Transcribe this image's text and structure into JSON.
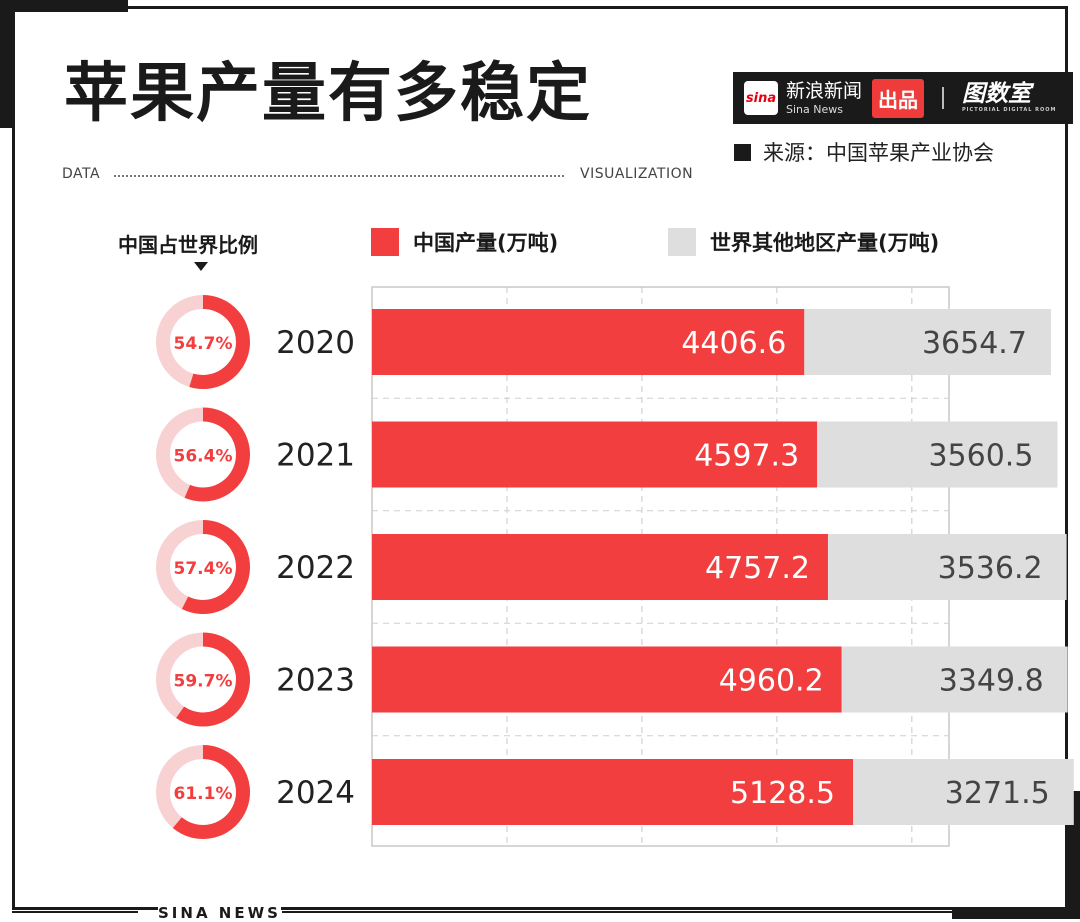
{
  "title": "苹果产量有多稳定",
  "brand": {
    "logo_text": "sina",
    "name_cn": "新浪新闻",
    "name_en": "Sina News",
    "pill": "出品",
    "partner": "图数室",
    "partner_sub": "PICTORIAL DIGITAL ROOM"
  },
  "source": "来源：中国苹果产业协会",
  "data_label": "DATA",
  "visualization_label": "VISUALIZATION",
  "share_label": "中国占世界比例",
  "footer": "SINA NEWS",
  "colors": {
    "china": "#f23e3e",
    "world": "#dedede",
    "ring_track": "#f8d2d2",
    "text_dark": "#1a1a1a"
  },
  "chart_data": {
    "type": "bar",
    "orientation": "horizontal",
    "stacked": true,
    "categories": [
      "2020",
      "2021",
      "2022",
      "2023",
      "2024"
    ],
    "series": [
      {
        "name": "中国产量(万吨)",
        "values": [
          4406.6,
          4597.3,
          4757.2,
          4960.2,
          5128.5
        ]
      },
      {
        "name": "世界其他地区产量(万吨)",
        "values": [
          3654.7,
          3560.5,
          3536.2,
          3349.8,
          3271.5
        ]
      }
    ],
    "share": [
      "54.7%",
      "56.4%",
      "57.4%",
      "59.7%",
      "61.1%"
    ],
    "share_values": [
      54.7,
      56.4,
      57.4,
      59.7,
      61.1
    ],
    "xlim": [
      -2000,
      8800
    ],
    "grid": true
  }
}
